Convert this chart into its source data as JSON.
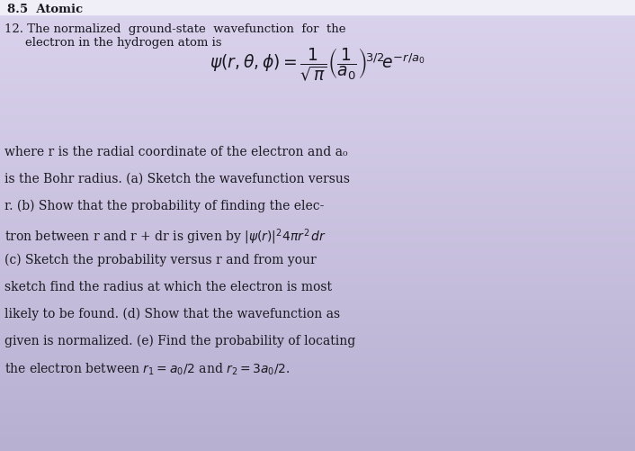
{
  "bg_color_top": "#d8d4e8",
  "bg_color_mid": "#c8c2dc",
  "bg_color_bot": "#b8b2cc",
  "top_bar_color": "#e8e8f0",
  "text_color": "#1a1820",
  "header": "8.5  Atomic   ",
  "lines": [
    "12. The normalized ground-state wavefunction for the",
    "      electron in the hydrogen atom is",
    "",
    "",
    "",
    "where r is the radial coordinate of the electron and a",
    "is the Bohr radius. (a) Sketch the wavefunction versu",
    "r. (b) Show that the probability of finding the elec-",
    "tron between r and r + dr is given by |\\psi(r)|^{2}4\\pi r^{2} dr",
    "(c) Sketch the probability versus r and from your",
    "sketch find the radius at which the electron is most",
    "likely to be found. (d) Show that the wavefunction as",
    "given is normalized. (e) Find the probability of locating",
    "the electron between r_1 = a_0/2 and r_2 = 3a_0/2."
  ],
  "equation": "$\\psi(r, \\theta, \\phi) = \\dfrac{1}{\\sqrt{\\pi}}\\left(\\dfrac{1}{a_0}\\right)^{\\!3/2}\\!e^{-r/a_0}$",
  "figsize": [
    7.06,
    5.02
  ],
  "dpi": 100
}
